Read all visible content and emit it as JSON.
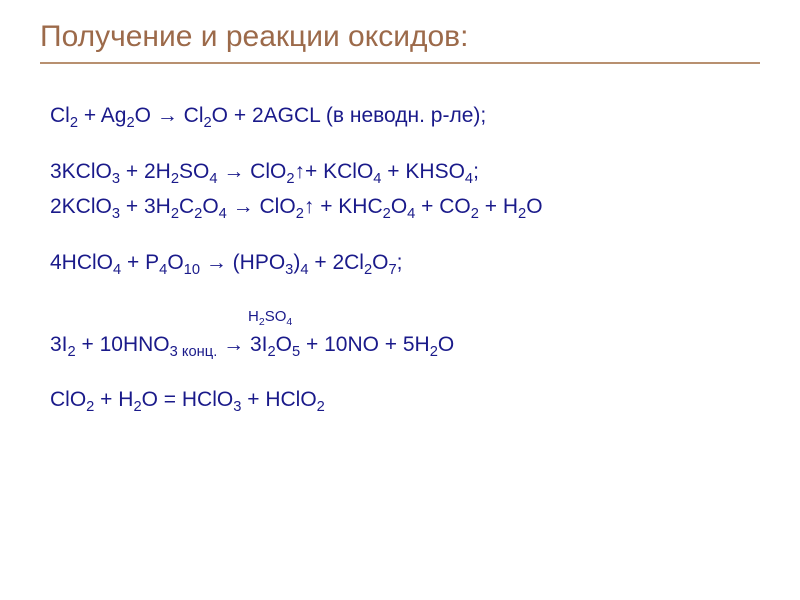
{
  "title": "Получение и реакции оксидов:",
  "colors": {
    "title": "#9c6a4a",
    "underline": "#b89070",
    "equation": "#1a1a8a",
    "background": "#ffffff"
  },
  "typography": {
    "title_fontsize": 30,
    "equation_fontsize": 21,
    "label_fontsize": 15,
    "font_family": "Arial"
  },
  "equations": {
    "e1_pre": "Cl",
    "e1_s1": "2",
    "e1_p2": " + Ag",
    "e1_s2": "2",
    "e1_p3": "O → Cl",
    "e1_s3": "2",
    "e1_p4": "O + 2AGCL (в неводн. р-ле);",
    "e2_pre": "3KСlO",
    "e2_s1": "3",
    "e2_p2": " + 2H",
    "e2_s2": "2",
    "e2_p3": "SO",
    "e2_s3": "4",
    "e2_p4": " → ClO",
    "e2_s4": "2",
    "e2_p5": "↑+ KСlO",
    "e2_s5": "4",
    "e2_p6": " + KHSO",
    "e2_s6": "4",
    "e2_p7": ";",
    "e3_pre": "2KСlO",
    "e3_s1": "3",
    "e3_p2": " + 3H",
    "e3_s2": "2",
    "e3_p3": "C",
    "e3_s3": "2",
    "e3_p4": "O",
    "e3_s4": "4",
    "e3_p5": " → ClO",
    "e3_s5": "2",
    "e3_p6": "↑ + KHC",
    "e3_s6": "2",
    "e3_p7": "O",
    "e3_s7": "4",
    "e3_p8": " + CO",
    "e3_s8": "2",
    "e3_p9": " + H",
    "e3_s9": "2",
    "e3_p10": "O",
    "e4_pre": "4HСlO",
    "e4_s1": "4",
    "e4_p2": " + P",
    "e4_s2": "4",
    "e4_p3": "O",
    "e4_s3": "10",
    "e4_p4": " → (HPO",
    "e4_s4": "3",
    "e4_p5": ")",
    "e4_s5": "4",
    "e4_p6": " + 2Cl",
    "e4_s6": "2",
    "e4_p7": "O",
    "e4_s7": "7",
    "e4_p8": ";",
    "lbl_p1": "H",
    "lbl_s1": "2",
    "lbl_p2": "SO",
    "lbl_s2": "4",
    "e5_pre": "3I",
    "e5_s1": "2",
    "e5_p2": " + 10HNO",
    "e5_s2": "3 конц.",
    "e5_p3": " →  3I",
    "e5_s3": "2",
    "e5_p4": "O",
    "e5_s4": "5",
    "e5_p5": " + 10NO + 5H",
    "e5_s5": "2",
    "e5_p6": "O",
    "e6_pre": "ClO",
    "e6_s1": "2",
    "e6_p2": " + H",
    "e6_s2": "2",
    "e6_p3": "O = HСlO",
    "e6_s3": "3",
    "e6_p4": " + HСlO",
    "e6_s4": "2"
  }
}
